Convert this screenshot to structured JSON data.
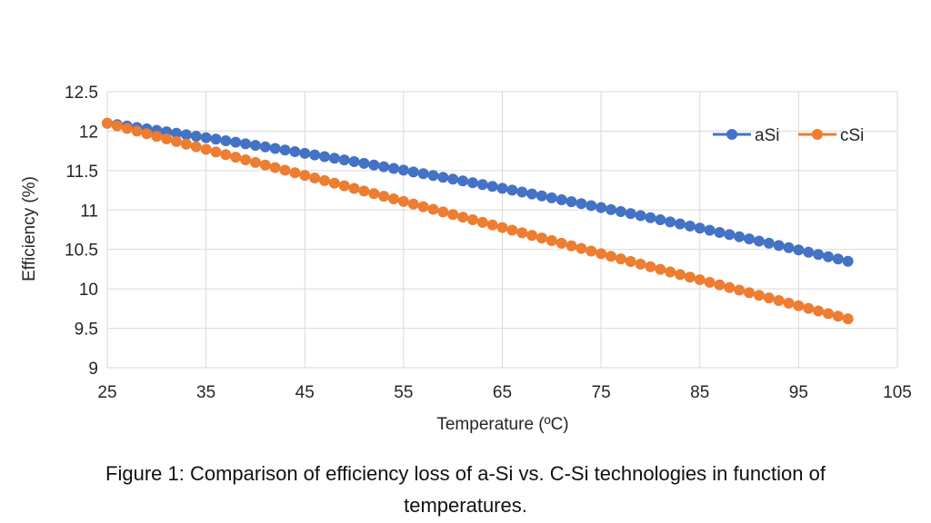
{
  "chart_data": {
    "type": "line",
    "xlabel": "Temperature (ºC)",
    "ylabel": "Efficiency (%)",
    "xlim": [
      25,
      105
    ],
    "ylim": [
      9,
      12.5
    ],
    "xticks": [
      25,
      35,
      45,
      55,
      65,
      75,
      85,
      95,
      105
    ],
    "yticks": [
      9,
      9.5,
      10,
      10.5,
      11,
      11.5,
      12,
      12.5
    ],
    "xtick_labels": [
      "25",
      "35",
      "45",
      "55",
      "65",
      "75",
      "85",
      "95",
      "105"
    ],
    "ytick_labels": [
      "9",
      "9.5",
      "10",
      "10.5",
      "11",
      "11.5",
      "12",
      "12.5"
    ],
    "grid": true,
    "legend": "top-right",
    "series": [
      {
        "name": "aSi",
        "color": "#4472C4",
        "x_start": 25,
        "x_end": 100,
        "x_step": 1,
        "y_start": 12.1,
        "y_end": 10.35
      },
      {
        "name": "cSi",
        "color": "#ED7D31",
        "x_start": 25,
        "x_end": 100,
        "x_step": 1,
        "y_start": 12.1,
        "y_end": 9.62
      }
    ]
  },
  "caption": {
    "line1": "Figure 1: Comparison of efficiency loss of a-Si vs. C-Si technologies in function of",
    "line2": "temperatures."
  }
}
